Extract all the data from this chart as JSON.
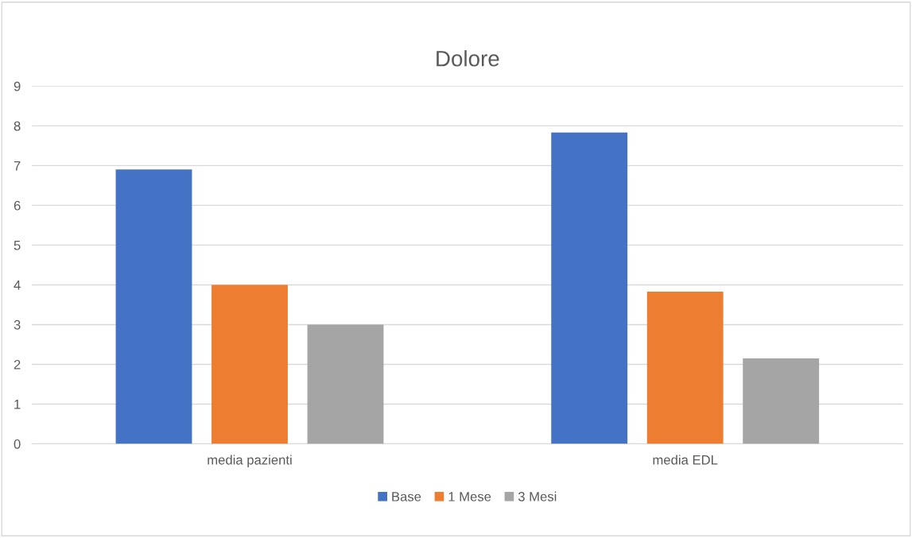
{
  "chart_data": {
    "type": "bar",
    "title": "Dolore",
    "categories": [
      "media pazienti",
      "media EDL"
    ],
    "series": [
      {
        "name": "Base",
        "color": "#4472c4",
        "values": [
          6.9,
          7.83
        ]
      },
      {
        "name": "1 Mese",
        "color": "#ed7d31",
        "values": [
          4.0,
          3.83
        ]
      },
      {
        "name": "3 Mesi",
        "color": "#a5a5a5",
        "values": [
          3.0,
          2.15
        ]
      }
    ],
    "ylim": [
      0,
      9
    ],
    "yticks": [
      0,
      1,
      2,
      3,
      4,
      5,
      6,
      7,
      8,
      9
    ],
    "grid": "y",
    "legend": "bottom"
  }
}
